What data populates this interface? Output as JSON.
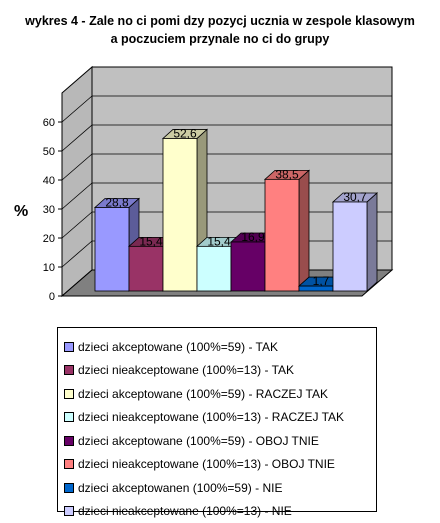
{
  "chart_data": {
    "type": "bar",
    "title": "wykres 4 - Zale  no ci pomi  dzy pozycj   ucznia w zespole klasowym a poczuciem przynale  no ci do grupy",
    "ylabel": "%",
    "xlabel": "",
    "ylim": [
      0,
      70
    ],
    "yticks": [
      0,
      10,
      20,
      30,
      40,
      50,
      60
    ],
    "grid": true,
    "legend_position": "bottom",
    "series": [
      {
        "name": "dzieci akceptowane (100%=59) - TAK",
        "value": 28.8,
        "label": "28,8",
        "color": "#9999FF"
      },
      {
        "name": "dzieci nieakceptowane (100%=13) - TAK",
        "value": 15.4,
        "label": "15,4",
        "color": "#993366"
      },
      {
        "name": "dzieci akceptowane (100%=59) - RACZEJ TAK",
        "value": 52.6,
        "label": "52,6",
        "color": "#FFFFCC"
      },
      {
        "name": "dzieci nieakceptowane (100%=13) - RACZEJ TAK",
        "value": 15.4,
        "label": "15,4",
        "color": "#CCFFFF"
      },
      {
        "name": "dzieci akceptowane (100%=59) - OBOJ  TNIE",
        "value": 16.9,
        "label": "16,9",
        "color": "#660066"
      },
      {
        "name": "dzieci nieakceptowane (100%=13) - OBOJ  TNIE",
        "value": 38.5,
        "label": "38,5",
        "color": "#FF8080"
      },
      {
        "name": "dzieci akceptowanen (100%=59) - NIE",
        "value": 1.7,
        "label": "1,7",
        "color": "#0066CC"
      },
      {
        "name": "dzieci nieakceptowane (100%=13) - NIE",
        "value": 30.7,
        "label": "30,7",
        "color": "#CCCCFF"
      }
    ]
  }
}
